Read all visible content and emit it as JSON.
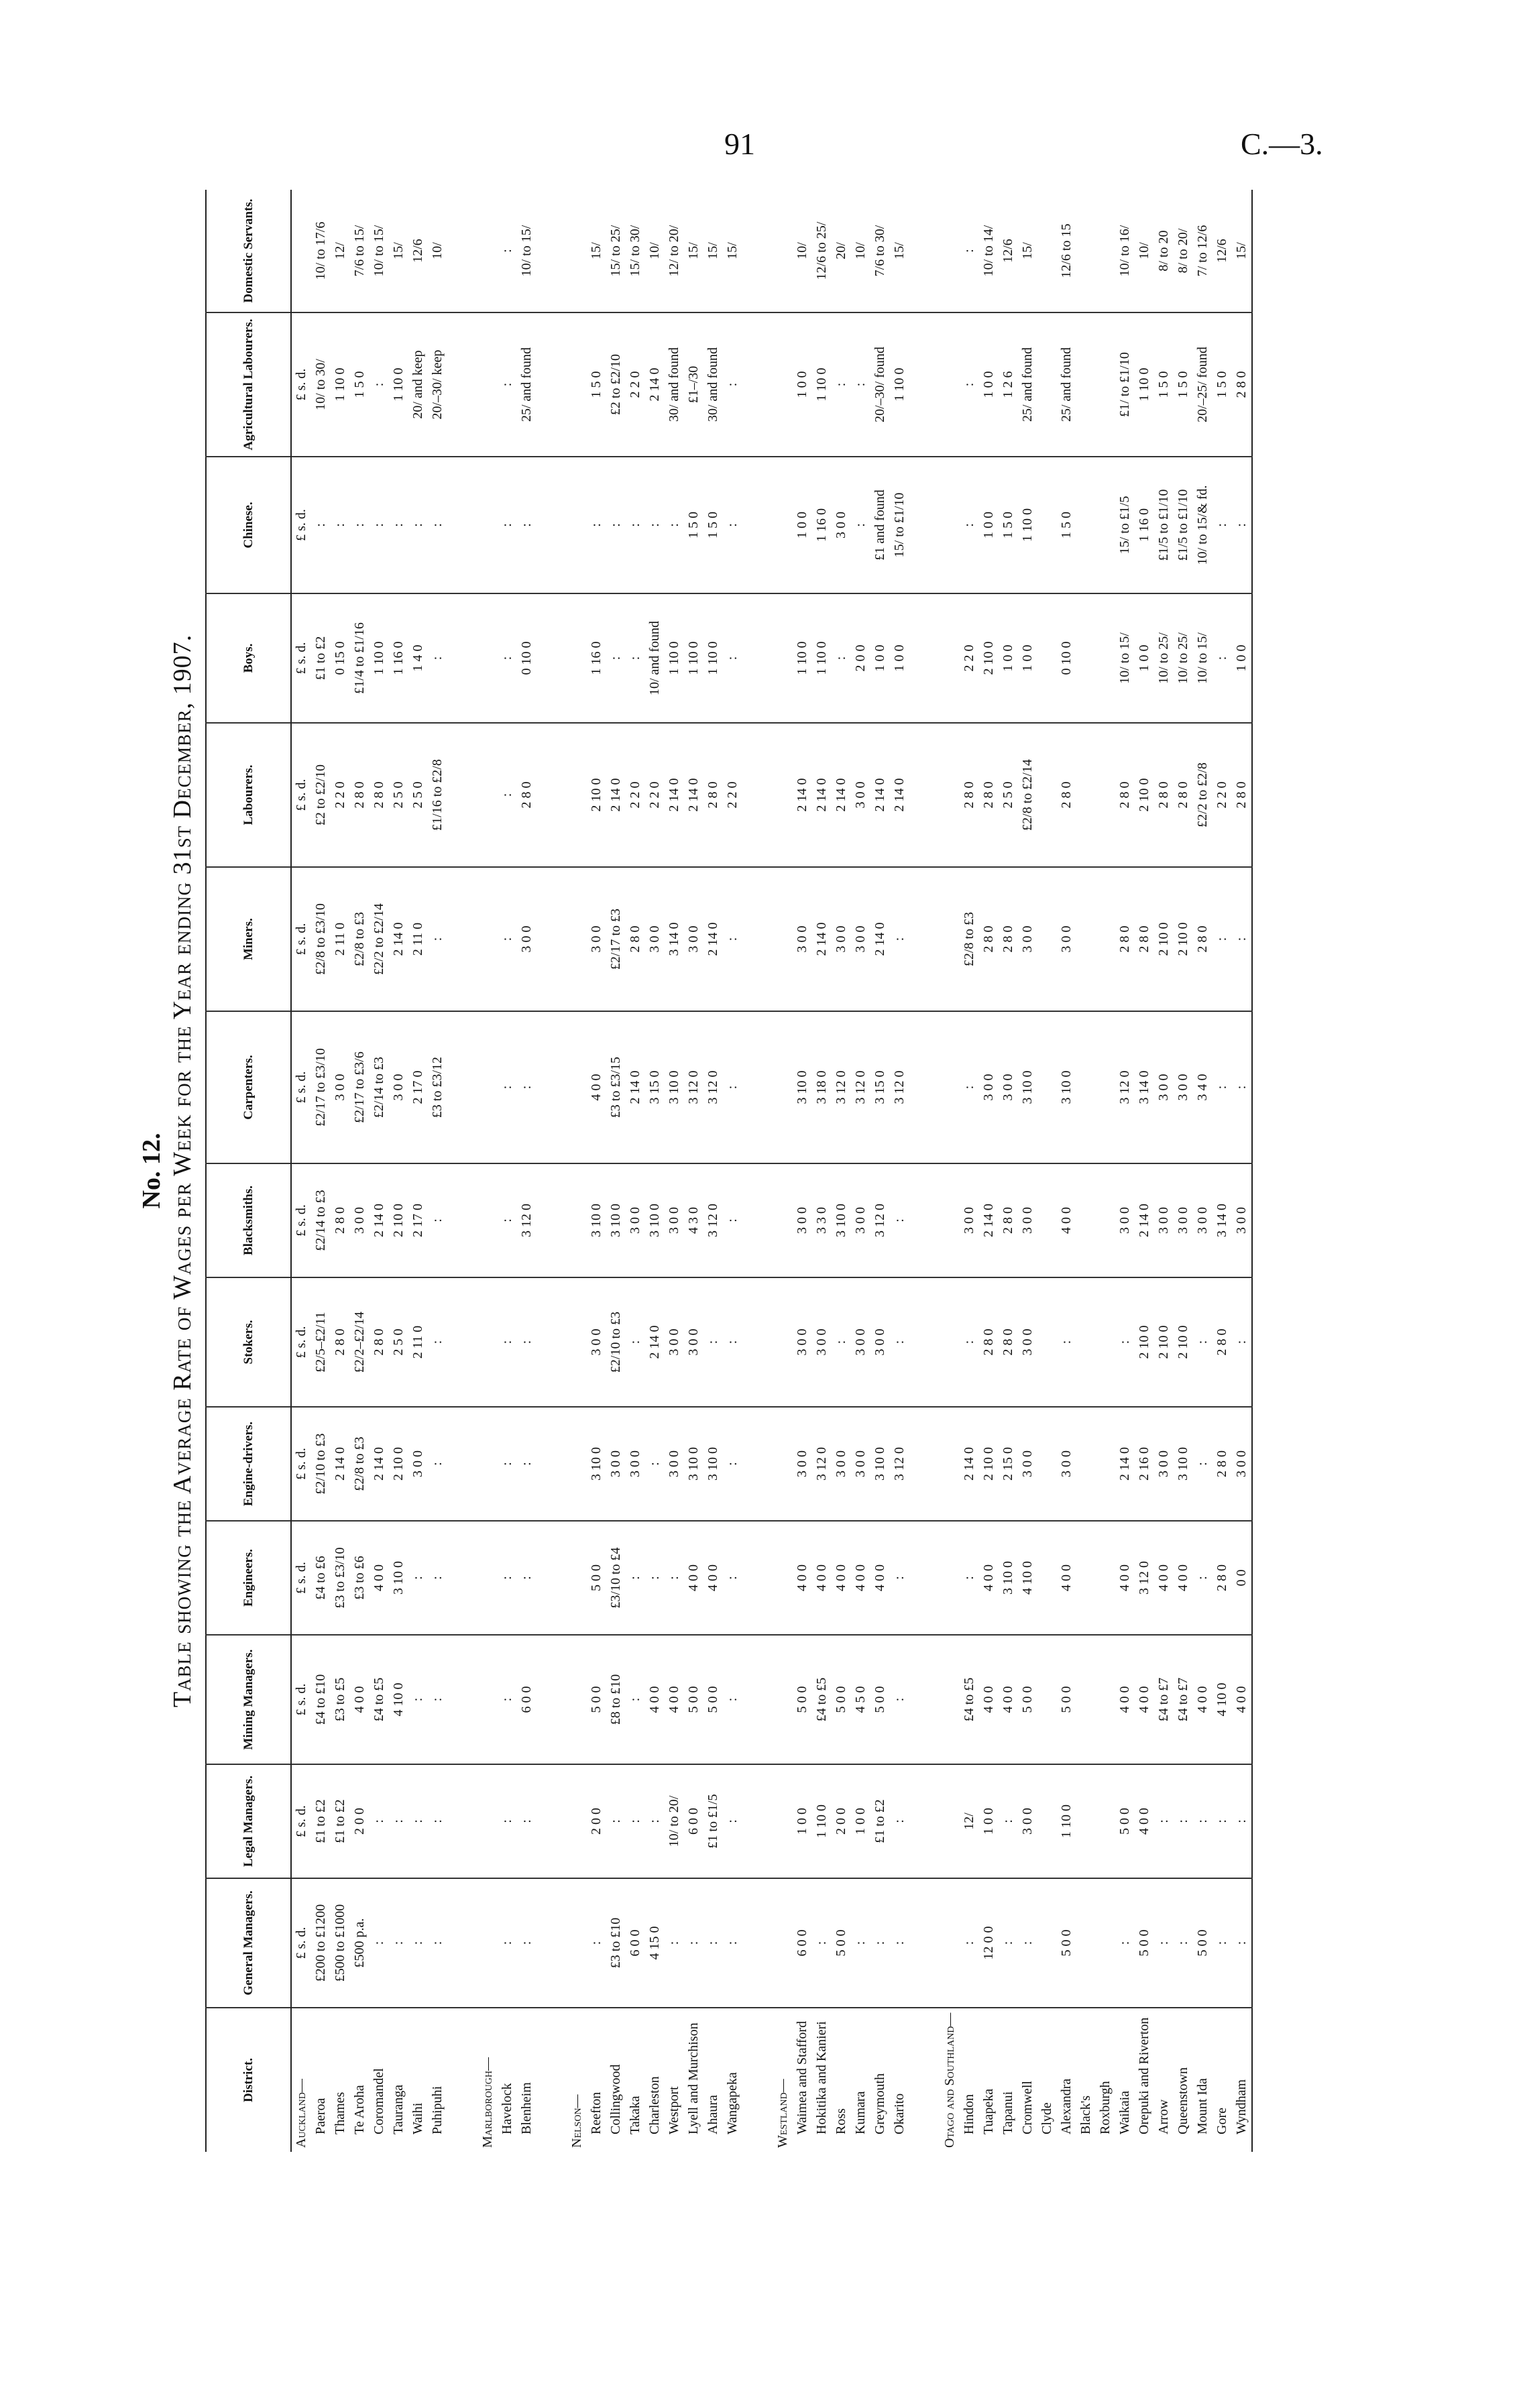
{
  "header": {
    "page_number": "91",
    "reference": "C.—3."
  },
  "title_block": {
    "number": "No. 12.",
    "title": "Table showing the Average Rate of Wages per Week for the Year ending 31st December, 1907."
  },
  "table": {
    "columns": [
      "District.",
      "General Managers.",
      "Legal Managers.",
      "Mining Managers.",
      "Engineers.",
      "Engine-drivers.",
      "Stokers.",
      "Blacksmiths.",
      "Carpenters.",
      "Miners.",
      "Labourers.",
      "Boys.",
      "Chinese.",
      "Agricultural Labourers.",
      "Domestic Servants."
    ],
    "units": [
      "£ s. d.",
      "£ s. d.",
      "£ s. d.",
      "£ s. d.",
      "£ s. d.",
      "£ s. d.",
      "£ s. d.",
      "£ s. d.",
      "£ s. d.",
      "£ s. d.",
      "£ s. d.",
      "£ s. d.",
      "£ s. d."
    ],
    "groups": [
      {
        "name": "Auckland—",
        "rows": [
          {
            "district": "Paeroa",
            "cells": [
              "£200 to £1200",
              "£1 to £2",
              "£4 to £10",
              "£4 to £6",
              "£2/10 to £3",
              "£2/5–£2/11",
              "£2/14 to £3",
              "£2/17 to £3/10",
              "£2/8 to £3/10",
              "£2 to £2/10",
              "£1 to £2",
              ":",
              "10/ to 30/",
              "10/ to 17/6"
            ]
          },
          {
            "district": "Thames",
            "cells": [
              "£500 to £1000",
              "£1 to £2",
              "£3 to £5",
              "£3 to £3/10",
              "2 14 0",
              "2 8 0",
              "2 8 0",
              "3 0 0",
              "2 11 0",
              "2 2 0",
              "0 15 0",
              ":",
              "1 10 0",
              "12/"
            ]
          },
          {
            "district": "Te Aroha",
            "cells": [
              "£500 p.a.",
              "2 0 0",
              "4 0 0",
              "£3 to £6",
              "£2/8 to £3",
              "£2/2–£2/14",
              "3 0 0",
              "£2/17 to £3/6",
              "£2/8 to £3",
              "2 8 0",
              "£1/4 to £1/16",
              ":",
              "1 5 0",
              "7/6 to 15/"
            ]
          },
          {
            "district": "Coromandel",
            "cells": [
              ":",
              ":",
              "£4 to £5",
              "4 0 0",
              "2 14 0",
              "2 8 0",
              "2 14 0",
              "£2/14 to £3",
              "£2/2 to £2/14",
              "2 8 0",
              "1 10 0",
              ":",
              ":",
              "10/ to 15/"
            ]
          },
          {
            "district": "Tauranga",
            "cells": [
              ":",
              ":",
              "4 10 0",
              "3 10 0",
              "2 10 0",
              "2 5 0",
              "2 10 0",
              "3 0 0",
              "2 14 0",
              "2 5 0",
              "1 16 0",
              ":",
              "1 10 0",
              "15/"
            ]
          },
          {
            "district": "Waihi",
            "cells": [
              ":",
              ":",
              ":",
              ":",
              "3 0 0",
              "2 11 0",
              "2 17 0",
              "2 17 0",
              "2 11 0",
              "2 5 0",
              "1 4 0",
              ":",
              "20/ and keep",
              "12/6"
            ]
          },
          {
            "district": "Puhipuhi",
            "cells": [
              ":",
              ":",
              ":",
              ":",
              ":",
              ":",
              ":",
              "£3 to £3/12",
              ":",
              "£1/16 to £2/8",
              ":",
              ":",
              "20/–30/ keep",
              "10/"
            ]
          }
        ]
      },
      {
        "name": "Marlborough—",
        "rows": [
          {
            "district": "Havelock",
            "cells": [
              ":",
              ":",
              ":",
              ":",
              ":",
              ":",
              ":",
              ":",
              ":",
              ":",
              ":",
              ":",
              ":",
              ":"
            ]
          },
          {
            "district": "Blenheim",
            "cells": [
              ":",
              ":",
              "6 0 0",
              ":",
              ":",
              ":",
              "3 12 0",
              ":",
              "3 0 0",
              "2 8 0",
              "0 10 0",
              ":",
              "25/ and found",
              "10/ to 15/"
            ]
          }
        ]
      },
      {
        "name": "Nelson—",
        "rows": [
          {
            "district": "Reefton",
            "cells": [
              ":",
              "2 0 0",
              "5 0 0",
              "5 0 0",
              "3 10 0",
              "3 0 0",
              "3 10 0",
              "4 0 0",
              "3 0 0",
              "2 10 0",
              "1 16 0",
              ":",
              "1 5 0",
              "15/"
            ]
          },
          {
            "district": "Collingwood",
            "cells": [
              "£3 to £10",
              ":",
              "£8 to £10",
              "£3/10 to £4",
              "3 0 0",
              "£2/10 to £3",
              "3 10 0",
              "£3 to £3/15",
              "£2/17 to £3",
              "2 14 0",
              ":",
              ":",
              "£2 to £2/10",
              "15/ to 25/"
            ]
          },
          {
            "district": "Takaka",
            "cells": [
              "6 0 0",
              ":",
              ":",
              ":",
              "3 0 0",
              ":",
              "3 0 0",
              "2 14 0",
              "2 8 0",
              "2 2 0",
              ":",
              ":",
              "2 2 0",
              "15/ to 30/"
            ]
          },
          {
            "district": "Charleston",
            "cells": [
              "4 15 0",
              ":",
              "4 0 0",
              ":",
              ":",
              "2 14 0",
              "3 10 0",
              "3 15 0",
              "3 0 0",
              "2 2 0",
              "10/ and found",
              ":",
              "2 14 0",
              "10/"
            ]
          },
          {
            "district": "Westport",
            "cells": [
              ":",
              "10/ to 20/",
              "4 0 0",
              ":",
              "3 0 0",
              "3 0 0",
              "3 0 0",
              "3 10 0",
              "3 14 0",
              "2 14 0",
              "1 10 0",
              ":",
              "30/ and found",
              "12/ to 20/"
            ]
          },
          {
            "district": "Lyell and Murchison",
            "cells": [
              ":",
              "6 0 0",
              "5 0 0",
              "4 0 0",
              "3 10 0",
              "3 0 0",
              "4 3 0",
              "3 12 0",
              "3 0 0",
              "2 14 0",
              "1 10 0",
              "1 5 0",
              "£1–/30",
              "15/"
            ]
          },
          {
            "district": "Ahaura",
            "cells": [
              ":",
              "£1 to £1/5",
              "5 0 0",
              "4 0 0",
              "3 10 0",
              ":",
              "3 12 0",
              "3 12 0",
              "2 14 0",
              "2 8 0",
              "1 10 0",
              "1 5 0",
              "30/ and found",
              "15/"
            ]
          },
          {
            "district": "Wangapeka",
            "cells": [
              ":",
              ":",
              ":",
              ":",
              ":",
              ":",
              ":",
              ":",
              ":",
              "2 2 0",
              ":",
              ":",
              ":",
              "15/"
            ]
          }
        ]
      },
      {
        "name": "Westland—",
        "rows": [
          {
            "district": "Waimea and Stafford",
            "cells": [
              "6 0 0",
              "1 0 0",
              "5 0 0",
              "4 0 0",
              "3 0 0",
              "3 0 0",
              "3 0 0",
              "3 10 0",
              "3 0 0",
              "2 14 0",
              "1 10 0",
              "1 0 0",
              "1 0 0",
              "10/"
            ]
          },
          {
            "district": "Hokitika and Kanieri",
            "cells": [
              ":",
              "1 10 0",
              "£4 to £5",
              "4 0 0",
              "3 12 0",
              "3 0 0",
              "3 3 0",
              "3 18 0",
              "2 14 0",
              "2 14 0",
              "1 10 0",
              "1 16 0",
              "1 10 0",
              "12/6 to 25/"
            ]
          },
          {
            "district": "Ross",
            "cells": [
              "5 0 0",
              "2 0 0",
              "5 0 0",
              "4 0 0",
              "3 0 0",
              ":",
              "3 10 0",
              "3 12 0",
              "3 0 0",
              "2 14 0",
              ":",
              "3 0 0",
              ":",
              "20/"
            ]
          },
          {
            "district": "Kumara",
            "cells": [
              ":",
              "1 0 0",
              "4 5 0",
              "4 0 0",
              "3 0 0",
              "3 0 0",
              "3 0 0",
              "3 12 0",
              "3 0 0",
              "3 0 0",
              "2 0 0",
              ":",
              ":",
              "10/"
            ]
          },
          {
            "district": "Greymouth",
            "cells": [
              ":",
              "£1 to £2",
              "5 0 0",
              "4 0 0",
              "3 10 0",
              "3 0 0",
              "3 12 0",
              "3 15 0",
              "2 14 0",
              "2 14 0",
              "1 0 0",
              "£1 and found",
              "20/–30/ found",
              "7/6 to 30/"
            ]
          },
          {
            "district": "Okarito",
            "cells": [
              ":",
              ":",
              ":",
              ":",
              "3 12 0",
              ":",
              ":",
              "3 12 0",
              ":",
              "2 14 0",
              "1 0 0",
              "15/ to £1/10",
              "1 10 0",
              "15/"
            ]
          }
        ]
      },
      {
        "name": "Otago and Southland—",
        "rows": [
          {
            "district": "Hindon",
            "cells": [
              ":",
              "12/",
              "£4 to £5",
              ":",
              "2 14 0",
              ":",
              "3 0 0",
              ":",
              "£2/8 to £3",
              "2 8 0",
              "2 2 0",
              ":",
              ":",
              ":"
            ]
          },
          {
            "district": "Tuapeka",
            "cells": [
              "12 0 0",
              "1 0 0",
              "4 0 0",
              "4 0 0",
              "2 10 0",
              "2 8 0",
              "2 14 0",
              "3 0 0",
              "2 8 0",
              "2 8 0",
              "2 10 0",
              "1 0 0",
              "1 0 0",
              "10/ to 14/"
            ]
          },
          {
            "district": "Tapanui",
            "cells": [
              ":",
              ":",
              "4 0 0",
              "3 10 0",
              "2 15 0",
              "2 8 0",
              "2 8 0",
              "3 0 0",
              "2 8 0",
              "2 5 0",
              "1 0 0",
              "1 5 0",
              "1 2 6",
              "12/6"
            ]
          },
          {
            "district": "Cromwell",
            "cells": [
              ":",
              "3 0 0",
              "5 0 0",
              "4 10 0",
              "3 0 0",
              "3 0 0",
              "3 0 0",
              "3 10 0",
              "3 0 0",
              "£2/8 to £2/14",
              "1 0 0",
              "1 10 0",
              "25/ and found",
              "15/"
            ]
          },
          {
            "district": "Clyde",
            "cells": [
              null,
              null,
              null,
              null,
              null,
              null,
              null,
              null,
              null,
              null,
              null,
              null,
              null,
              null
            ]
          },
          {
            "district": "Alexandra",
            "cells": [
              "5 0 0",
              "1 10 0",
              "5 0 0",
              "4 0 0",
              "3 0 0",
              ":",
              "4 0 0",
              "3 10 0",
              "3 0 0",
              "2 8 0",
              "0 10 0",
              "1 5 0",
              "25/ and found",
              "12/6 to 15"
            ]
          },
          {
            "district": "Black's",
            "cells": [
              null,
              null,
              null,
              null,
              null,
              null,
              null,
              null,
              null,
              null,
              null,
              null,
              null,
              null
            ]
          },
          {
            "district": "Roxburgh",
            "cells": [
              null,
              null,
              null,
              null,
              null,
              null,
              null,
              null,
              null,
              null,
              null,
              null,
              null,
              null
            ]
          },
          {
            "district": "Waikaia",
            "cells": [
              ":",
              "5 0 0",
              "4 0 0",
              "4 0 0",
              "2 14 0",
              ":",
              "3 0 0",
              "3 12 0",
              "2 8 0",
              "2 8 0",
              "10/ to 15/",
              "15/ to £1/5",
              "£1/ to £1/10",
              "10/ to 16/"
            ]
          },
          {
            "district": "Orepuki and Riverton",
            "cells": [
              "5 0 0",
              "4 0 0",
              "4 0 0",
              "3 12 0",
              "2 16 0",
              "2 10 0",
              "2 14 0",
              "3 14 0",
              "2 8 0",
              "2 10 0",
              "1 0 0",
              "1 16 0",
              "1 10 0",
              "10/"
            ]
          },
          {
            "district": "Arrow",
            "cells": [
              ":",
              ":",
              "£4 to £7",
              "4 0 0",
              "3 0 0",
              "2 10 0",
              "3 0 0",
              "3 0 0",
              "2 10 0",
              "2 8 0",
              "10/ to 25/",
              "£1/5 to £1/10",
              "1 5 0",
              "8/ to 20"
            ]
          },
          {
            "district": "Queenstown",
            "cells": [
              ":",
              ":",
              "£4 to £7",
              "4 0 0",
              "3 10 0",
              "2 10 0",
              "3 0 0",
              "3 0 0",
              "2 10 0",
              "2 8 0",
              "10/ to 25/",
              "£1/5 to £1/10",
              "1 5 0",
              "8/ to 20/"
            ]
          },
          {
            "district": "Mount Ida",
            "cells": [
              "5 0 0",
              ":",
              "4 0 0",
              ":",
              ":",
              ":",
              "3 0 0",
              "3 4 0",
              "2 8 0",
              "£2/2 to £2/8",
              "10/ to 15/",
              "10/ to 15/& fd.",
              "20/–25/ found",
              "7/ to 12/6"
            ]
          },
          {
            "district": "Gore",
            "cells": [
              ":",
              ":",
              "4 10 0",
              "2 8 0",
              "2 8 0",
              "2 8 0",
              "3 14 0",
              ":",
              ":",
              "2 2 0",
              ":",
              ":",
              "1 5 0",
              "12/6"
            ]
          },
          {
            "district": "Wyndham",
            "cells": [
              ":",
              ":",
              "4 0 0",
              "0 0",
              "3 0 0",
              ":",
              "3 0 0",
              ":",
              ":",
              "2 8 0",
              "1 0 0",
              ":",
              "2 8 0",
              "15/"
            ]
          }
        ]
      }
    ]
  }
}
